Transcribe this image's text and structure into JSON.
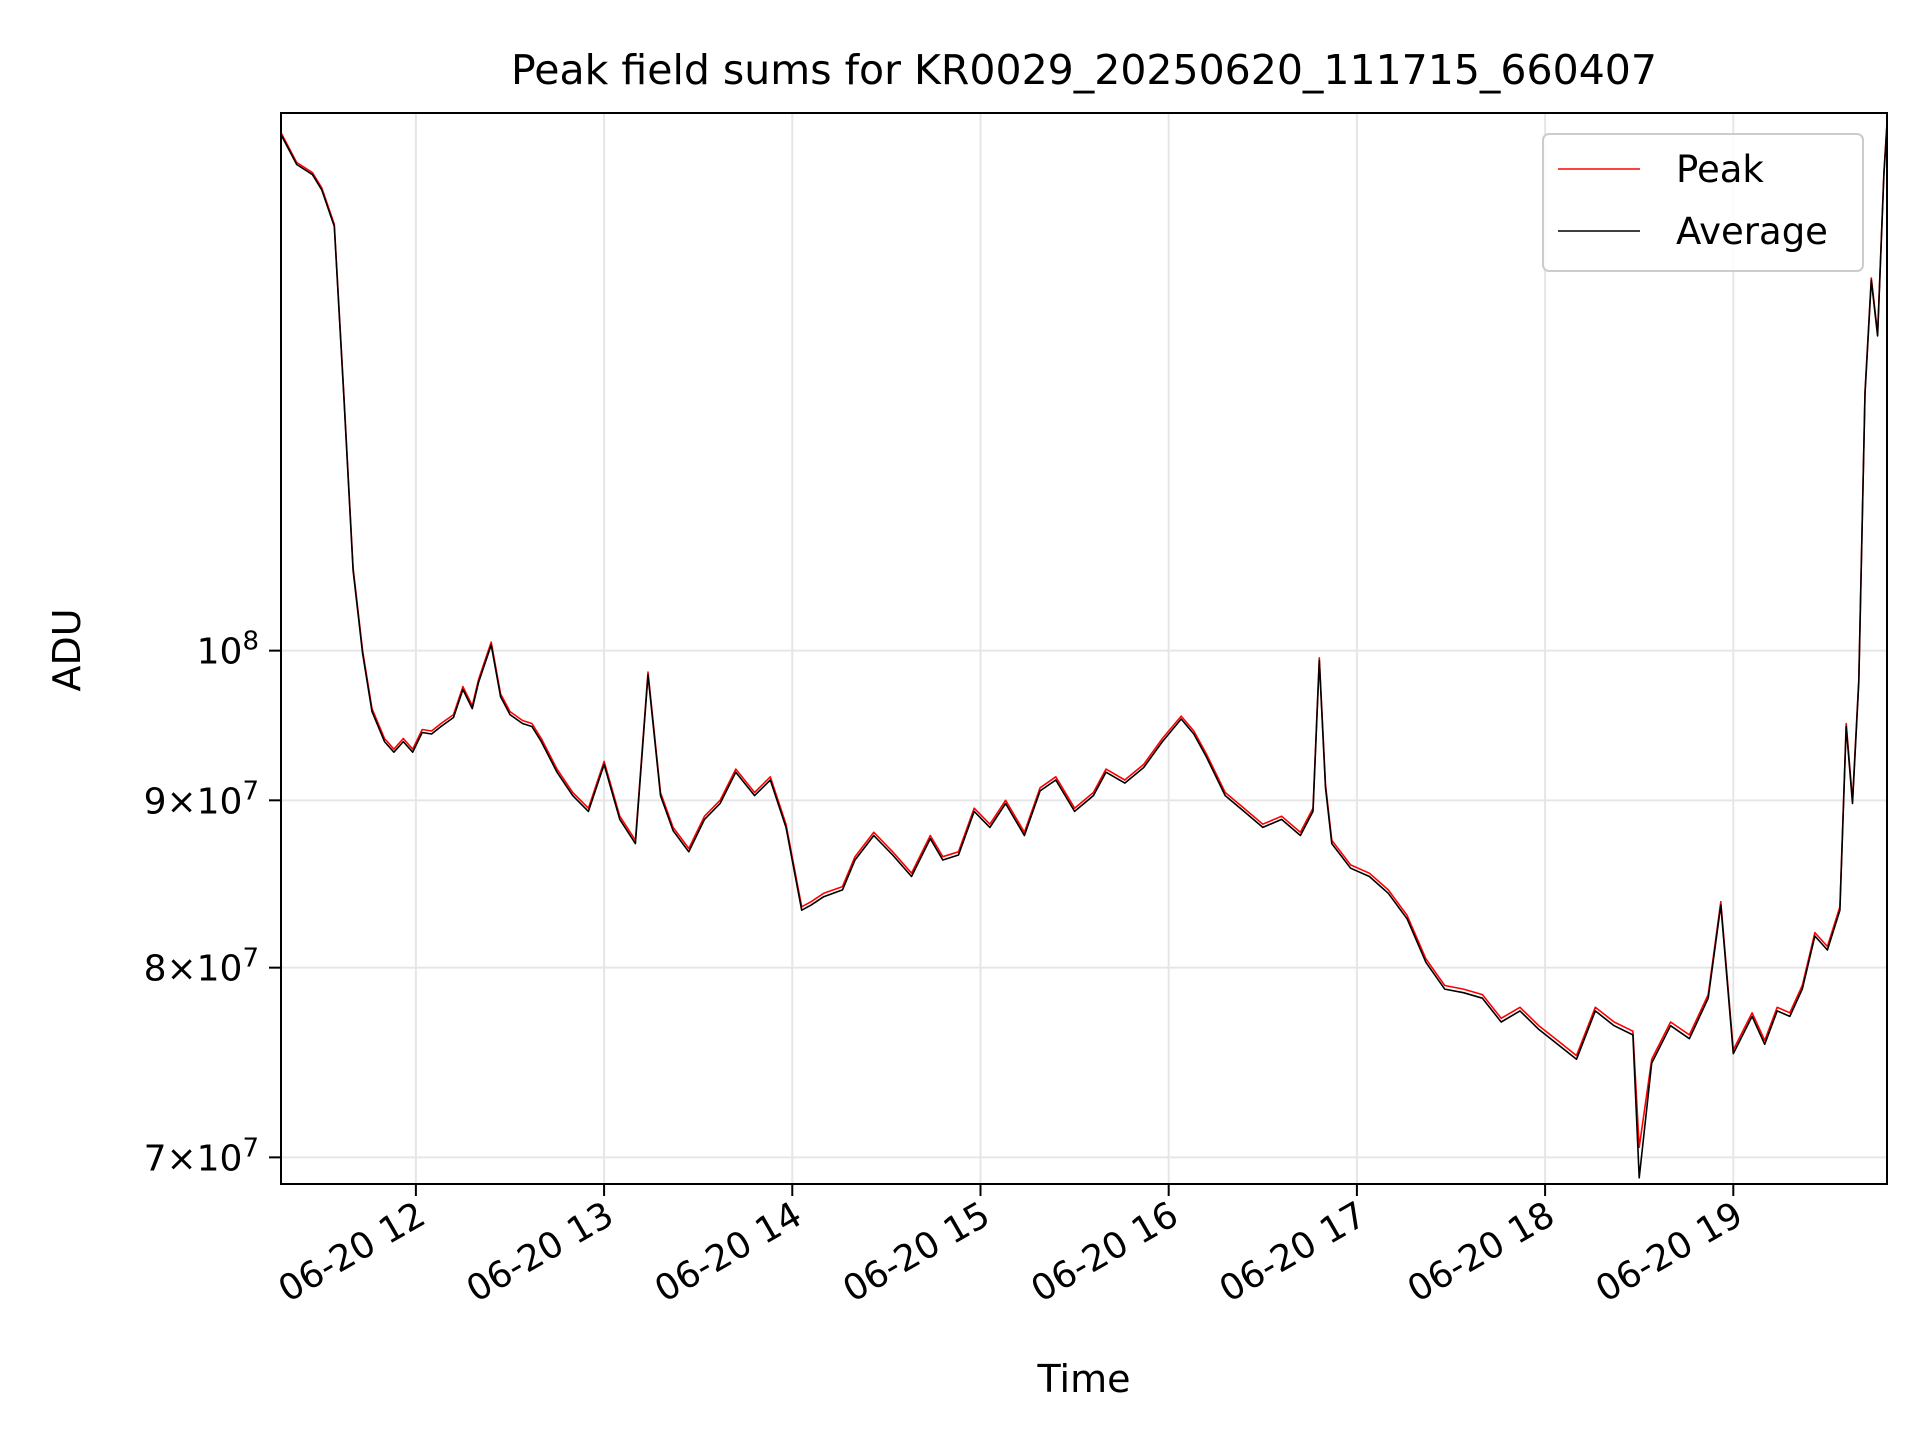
{
  "chart_data": {
    "type": "line",
    "title": "Peak field sums for KR0029_20250620_111715_660407",
    "xlabel": "Time",
    "ylabel": "ADU",
    "x_ticks": [
      "06-20 12",
      "06-20 13",
      "06-20 14",
      "06-20 15",
      "06-20 16",
      "06-20 17",
      "06-20 18",
      "06-20 19"
    ],
    "y_ticks": [
      {
        "value": 70000000,
        "mant": "7",
        "exp": "7",
        "sci": true
      },
      {
        "value": 80000000,
        "mant": "8",
        "exp": "7",
        "sci": true
      },
      {
        "value": 90000000,
        "mant": "9",
        "exp": "7",
        "sci": true
      },
      {
        "value": 100000000,
        "mant": "10",
        "exp": "8",
        "sci": false
      }
    ],
    "xlim": [
      "2025-06-20 11:17",
      "2025-06-20 19:49"
    ],
    "ylim": [
      68700000,
      146000000
    ],
    "yscale": "log",
    "grid": true,
    "legend_position": "top-right",
    "series": [
      {
        "name": "Peak",
        "color": "#ff0000",
        "x": [
          "11:17",
          "11:22",
          "11:27",
          "11:30",
          "11:34",
          "11:37",
          "11:40",
          "11:43",
          "11:46",
          "11:50",
          "11:53",
          "11:56",
          "11:59",
          "12:02",
          "12:05",
          "12:08",
          "12:12",
          "12:15",
          "12:18",
          "12:20",
          "12:24",
          "12:27",
          "12:30",
          "12:34",
          "12:37",
          "12:40",
          "12:45",
          "12:50",
          "12:55",
          "13:00",
          "13:05",
          "13:10",
          "13:14",
          "13:18",
          "13:22",
          "13:27",
          "13:32",
          "13:37",
          "13:42",
          "13:48",
          "13:53",
          "13:58",
          "14:03",
          "14:06",
          "14:10",
          "14:16",
          "14:20",
          "14:26",
          "14:32",
          "14:38",
          "14:44",
          "14:48",
          "14:53",
          "14:58",
          "15:03",
          "15:08",
          "15:14",
          "15:19",
          "15:24",
          "15:30",
          "15:36",
          "15:40",
          "15:46",
          "15:52",
          "15:58",
          "16:04",
          "16:08",
          "16:12",
          "16:18",
          "16:24",
          "16:30",
          "16:36",
          "16:42",
          "16:46",
          "16:48",
          "16:50",
          "16:52",
          "16:58",
          "17:04",
          "17:10",
          "17:16",
          "17:22",
          "17:28",
          "17:34",
          "17:40",
          "17:46",
          "17:52",
          "17:58",
          "18:04",
          "18:10",
          "18:16",
          "18:22",
          "18:28",
          "18:30",
          "18:34",
          "18:40",
          "18:46",
          "18:52",
          "18:56",
          "19:00",
          "19:06",
          "19:10",
          "19:14",
          "19:18",
          "19:22",
          "19:26",
          "19:30",
          "19:34",
          "19:36",
          "19:38",
          "19:40",
          "19:42",
          "19:44",
          "19:46",
          "19:48",
          "19:49"
        ],
        "values": [
          144000000,
          141000000,
          140000000,
          138500000,
          135000000,
          120000000,
          106000000,
          100000000,
          96000000,
          94000000,
          93300000,
          94000000,
          93300000,
          94600000,
          94500000,
          95000000,
          95600000,
          97500000,
          96200000,
          98000000,
          100600000,
          97000000,
          95800000,
          95200000,
          95000000,
          94000000,
          92000000,
          90500000,
          89500000,
          92500000,
          89000000,
          87500000,
          98500000,
          90500000,
          88300000,
          87000000,
          89000000,
          90000000,
          92000000,
          90500000,
          91500000,
          88500000,
          83500000,
          83800000,
          84300000,
          84700000,
          86500000,
          88000000,
          86800000,
          85500000,
          87800000,
          86500000,
          86800000,
          89500000,
          88500000,
          90000000,
          88000000,
          90800000,
          91500000,
          89500000,
          90500000,
          92000000,
          91300000,
          92300000,
          94000000,
          95500000,
          94500000,
          93000000,
          90500000,
          89500000,
          88500000,
          89000000,
          88000000,
          89500000,
          99500000,
          91000000,
          87500000,
          86000000,
          85500000,
          84500000,
          83000000,
          80500000,
          79000000,
          78800000,
          78500000,
          77200000,
          77800000,
          76800000,
          76000000,
          75200000,
          77800000,
          77000000,
          76500000,
          70500000,
          75000000,
          77000000,
          76300000,
          78500000,
          83800000,
          75500000,
          77500000,
          76000000,
          77800000,
          77500000,
          79000000,
          82000000,
          81200000,
          83500000,
          95000000,
          90000000,
          98000000,
          120000000,
          130000000,
          125000000,
          140000000,
          145000000
        ]
      },
      {
        "name": "Average",
        "color": "#000000",
        "x": [
          "11:17",
          "11:22",
          "11:27",
          "11:30",
          "11:34",
          "11:37",
          "11:40",
          "11:43",
          "11:46",
          "11:50",
          "11:53",
          "11:56",
          "11:59",
          "12:02",
          "12:05",
          "12:08",
          "12:12",
          "12:15",
          "12:18",
          "12:20",
          "12:24",
          "12:27",
          "12:30",
          "12:34",
          "12:37",
          "12:40",
          "12:45",
          "12:50",
          "12:55",
          "13:00",
          "13:05",
          "13:10",
          "13:14",
          "13:18",
          "13:22",
          "13:27",
          "13:32",
          "13:37",
          "13:42",
          "13:48",
          "13:53",
          "13:58",
          "14:03",
          "14:06",
          "14:10",
          "14:16",
          "14:20",
          "14:26",
          "14:32",
          "14:38",
          "14:44",
          "14:48",
          "14:53",
          "14:58",
          "15:03",
          "15:08",
          "15:14",
          "15:19",
          "15:24",
          "15:30",
          "15:36",
          "15:40",
          "15:46",
          "15:52",
          "15:58",
          "16:04",
          "16:08",
          "16:12",
          "16:18",
          "16:24",
          "16:30",
          "16:36",
          "16:42",
          "16:46",
          "16:48",
          "16:50",
          "16:52",
          "16:58",
          "17:04",
          "17:10",
          "17:16",
          "17:22",
          "17:28",
          "17:34",
          "17:40",
          "17:46",
          "17:52",
          "17:58",
          "18:04",
          "18:10",
          "18:16",
          "18:22",
          "18:28",
          "18:30",
          "18:34",
          "18:40",
          "18:46",
          "18:52",
          "18:56",
          "19:00",
          "19:06",
          "19:10",
          "19:14",
          "19:18",
          "19:22",
          "19:26",
          "19:30",
          "19:34",
          "19:36",
          "19:38",
          "19:40",
          "19:42",
          "19:44",
          "19:46",
          "19:48",
          "19:49"
        ],
        "values": [
          143800000,
          140800000,
          139800000,
          138300000,
          134800000,
          119800000,
          105800000,
          99800000,
          95800000,
          93800000,
          93100000,
          93800000,
          93100000,
          94400000,
          94300000,
          94800000,
          95400000,
          97300000,
          96000000,
          97800000,
          100400000,
          96800000,
          95600000,
          95000000,
          94800000,
          93800000,
          91800000,
          90300000,
          89300000,
          92300000,
          88800000,
          87300000,
          98300000,
          90300000,
          88100000,
          86800000,
          88800000,
          89800000,
          91800000,
          90300000,
          91300000,
          88300000,
          83300000,
          83600000,
          84100000,
          84500000,
          86300000,
          87800000,
          86600000,
          85300000,
          87600000,
          86300000,
          86600000,
          89300000,
          88300000,
          89800000,
          87800000,
          90600000,
          91300000,
          89300000,
          90300000,
          91800000,
          91100000,
          92100000,
          93800000,
          95300000,
          94300000,
          92800000,
          90300000,
          89300000,
          88300000,
          88800000,
          87800000,
          89300000,
          99300000,
          90800000,
          87300000,
          85800000,
          85300000,
          84300000,
          82800000,
          80300000,
          78800000,
          78600000,
          78300000,
          77000000,
          77600000,
          76600000,
          75800000,
          75000000,
          77600000,
          76800000,
          76300000,
          69000000,
          74800000,
          76800000,
          76100000,
          78300000,
          83600000,
          75300000,
          77300000,
          75800000,
          77600000,
          77300000,
          78800000,
          81800000,
          81000000,
          83300000,
          94800000,
          89800000,
          97800000,
          119800000,
          129800000,
          124800000,
          139800000,
          144800000
        ]
      }
    ]
  }
}
